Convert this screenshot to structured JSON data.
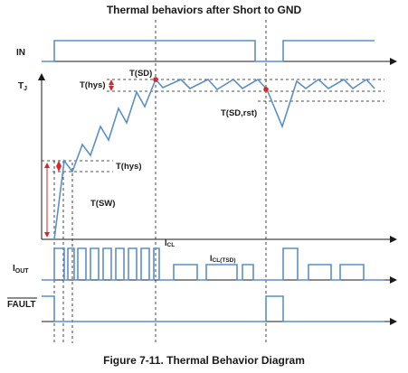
{
  "title": "Thermal behaviors after Short to GND",
  "caption": "Figure 7-11. Thermal Behavior Diagram",
  "signals": {
    "in": "IN",
    "tj_main": "T",
    "tj_sub": "J",
    "iout_main": "I",
    "iout_sub": "OUT",
    "fault": "FAULT"
  },
  "annotations": {
    "t_sd": "T(SD)",
    "t_hys_top": "T(hys)",
    "t_sd_rst": "T(SD,rst)",
    "t_hys_low": "T(hys)",
    "t_sw": "T(SW)",
    "icl_main": "I",
    "icl_sub": "CL",
    "icl_tsd_main": "I",
    "icl_tsd_sub": "CL(TSD)"
  },
  "colors": {
    "waveform": "#5b8fc9",
    "axis": "#1a1a1a",
    "marker": "#d9262b"
  }
}
